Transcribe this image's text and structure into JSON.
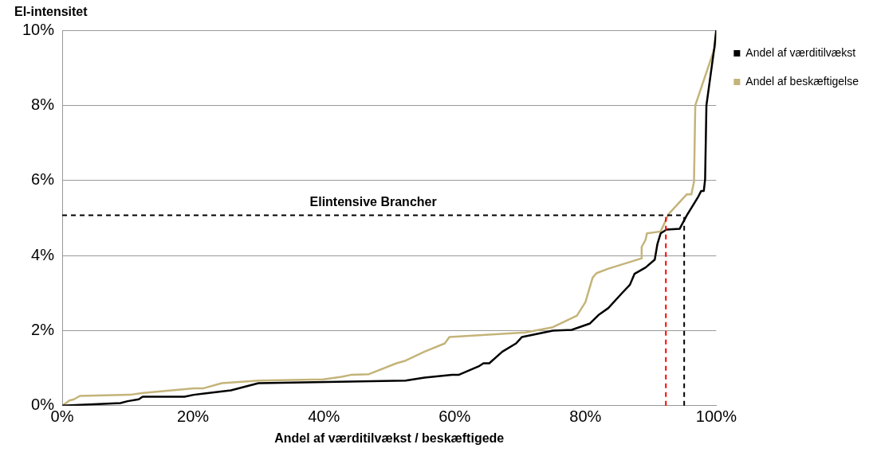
{
  "chart_data": {
    "type": "line",
    "ylabel": "El-intensitet",
    "xlabel": "Andel af værditilvækst / beskæftigede",
    "xlim": [
      0,
      100
    ],
    "xticks": [
      {
        "value": 0,
        "label": "0%"
      },
      {
        "value": 20,
        "label": "20%"
      },
      {
        "value": 40,
        "label": "40%"
      },
      {
        "value": 60,
        "label": "60%"
      },
      {
        "value": 80,
        "label": "80%"
      },
      {
        "value": 100,
        "label": "100%"
      }
    ],
    "ylim": [
      0,
      10
    ],
    "yticks": [
      {
        "value": 0,
        "label": "0%"
      },
      {
        "value": 2,
        "label": "2%"
      },
      {
        "value": 4,
        "label": "4%"
      },
      {
        "value": 6,
        "label": "6%"
      },
      {
        "value": 8,
        "label": "8%"
      },
      {
        "value": 10,
        "label": "10%"
      }
    ],
    "grid": "y",
    "legend": "top right",
    "marker": "none",
    "series": [
      {
        "name": "Andel af værditilvækst",
        "color": "#000000",
        "x": [
          0,
          8.9,
          10,
          11.7,
          12.3,
          18.7,
          20.1,
          25.8,
          30,
          52.5,
          55.4,
          59.6,
          60.6,
          63.8,
          64.4,
          65.3,
          67.3,
          69.4,
          70.3,
          75,
          77.9,
          80.7,
          82.1,
          83.5,
          85.6,
          86.8,
          87.5,
          89.2,
          90.6,
          91,
          91.5,
          92.4,
          94.4,
          95.5,
          97.2,
          97.7,
          98.1,
          98.3,
          98.5,
          99.7,
          100
        ],
        "values": [
          0,
          0.07,
          0.12,
          0.17,
          0.24,
          0.24,
          0.29,
          0.41,
          0.6,
          0.67,
          0.75,
          0.82,
          0.82,
          1.06,
          1.13,
          1.13,
          1.44,
          1.66,
          1.83,
          2,
          2.02,
          2.19,
          2.43,
          2.6,
          3,
          3.22,
          3.51,
          3.68,
          3.89,
          4.3,
          4.59,
          4.69,
          4.71,
          5.07,
          5.55,
          5.72,
          5.72,
          6.03,
          8,
          9.52,
          10
        ]
      },
      {
        "name": "Andel af beskæftigelse",
        "color": "#c4b47a",
        "x": [
          0,
          0.4,
          1.1,
          1.8,
          2.7,
          10.3,
          12.4,
          20.1,
          21.5,
          24.4,
          30,
          39.9,
          42.7,
          44.1,
          46.9,
          51.1,
          52.5,
          55.4,
          58.5,
          59.2,
          70.8,
          75,
          76.8,
          78.7,
          80,
          81.1,
          81.7,
          83.5,
          88.5,
          88.6,
          89.2,
          89.4,
          91.5,
          92.7,
          95.5,
          96.2,
          96.6,
          96.8,
          99.9,
          100
        ],
        "values": [
          0,
          0.05,
          0.14,
          0.17,
          0.26,
          0.29,
          0.34,
          0.46,
          0.46,
          0.6,
          0.67,
          0.7,
          0.77,
          0.82,
          0.84,
          1.13,
          1.2,
          1.44,
          1.66,
          1.83,
          1.95,
          2.09,
          2.24,
          2.4,
          2.76,
          3.41,
          3.53,
          3.65,
          3.92,
          4.23,
          4.42,
          4.59,
          4.64,
          5.1,
          5.63,
          5.63,
          5.96,
          8,
          9.6,
          10
        ]
      }
    ],
    "ref_lines": [
      {
        "axis": "y",
        "value": 5.07,
        "label": "Elintensive Brancher",
        "color": "#000000",
        "line_style": "dashed"
      },
      {
        "axis": "x",
        "value": 92.3,
        "color": "#ff0000",
        "line_style": "dashed"
      },
      {
        "axis": "x",
        "value": 95.1,
        "color": "#000000",
        "line_style": "dashed"
      }
    ]
  }
}
